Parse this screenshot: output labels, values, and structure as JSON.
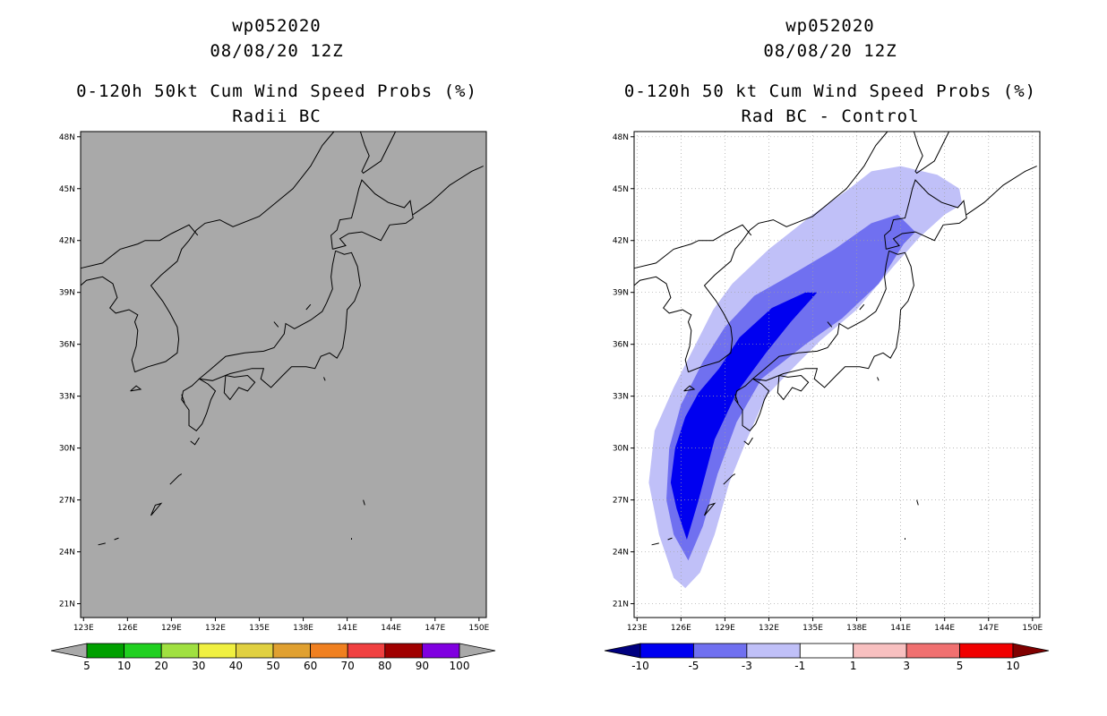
{
  "left_panel": {
    "storm_id": "wp052020",
    "datetime": "08/08/20 12Z",
    "title": "0-120h 50kt Cum Wind Speed Probs (%)",
    "subtitle": "Radii BC",
    "plot_background": "#a9a9a9",
    "colorbar": {
      "colors": [
        "#00a000",
        "#20d020",
        "#a0e040",
        "#f0f040",
        "#e0d040",
        "#e0a030",
        "#f08020",
        "#f04040",
        "#a00000",
        "#8000e0"
      ],
      "under_color": "#a9a9a9",
      "over_color": "#a9a9a9",
      "labels": [
        "5",
        "10",
        "20",
        "30",
        "40",
        "50",
        "60",
        "70",
        "80",
        "90",
        "100"
      ]
    }
  },
  "right_panel": {
    "storm_id": "wp052020",
    "datetime": "08/08/20 12Z",
    "title": "0-120h 50 kt Cum Wind Speed Probs (%)",
    "subtitle": "Rad BC - Control",
    "plot_background": "#ffffff",
    "colorbar": {
      "colors": [
        "#0000f0",
        "#7070f0",
        "#c0c0f8",
        "#ffffff",
        "#f8c0c0",
        "#f07070",
        "#f00000"
      ],
      "under_color": "#000080",
      "over_color": "#800000",
      "labels": [
        "-10",
        "-5",
        "-3",
        "-1",
        "1",
        "3",
        "5",
        "10"
      ]
    }
  },
  "axes": {
    "lon_labels": [
      "123E",
      "126E",
      "129E",
      "132E",
      "135E",
      "138E",
      "141E",
      "144E",
      "147E",
      "150E"
    ],
    "lat_labels": [
      "48N",
      "45N",
      "42N",
      "39N",
      "36N",
      "33N",
      "30N",
      "27N",
      "24N",
      "21N"
    ]
  },
  "chart_data": [
    {
      "type": "heatmap",
      "title": "0-120h 50kt Cum Wind Speed Probs (%)",
      "subtitle": "Radii BC",
      "units": "%",
      "lon_range": [
        122.8,
        150.5
      ],
      "lat_range": [
        20.2,
        48.3
      ],
      "field": "no probability exceeding 5% shown (entire domain below lowest contour)",
      "levels": [
        5,
        10,
        20,
        30,
        40,
        50,
        60,
        70,
        80,
        90,
        100
      ]
    },
    {
      "type": "heatmap",
      "title": "0-120h 50 kt Cum Wind Speed Probs (%)",
      "subtitle": "Rad BC - Control",
      "units": "%",
      "lon_range": [
        122.8,
        150.5
      ],
      "lat_range": [
        20.2,
        48.3
      ],
      "levels": [
        -10,
        -5,
        -3,
        -1,
        1,
        3,
        5,
        10
      ],
      "contours": [
        {
          "range": "-3 to -1",
          "outline_lonlat": [
            [
              124.5,
              25
            ],
            [
              125.5,
              22.5
            ],
            [
              126.3,
              21.9
            ],
            [
              127.3,
              22.8
            ],
            [
              128.3,
              25
            ],
            [
              129.3,
              28
            ],
            [
              130.5,
              30.5
            ],
            [
              131.8,
              33
            ],
            [
              133.5,
              34.5
            ],
            [
              135.5,
              36.2
            ],
            [
              138,
              38
            ],
            [
              140.5,
              40.5
            ],
            [
              142.3,
              42.2
            ],
            [
              144,
              43.5
            ],
            [
              145.2,
              44.1
            ],
            [
              145,
              45
            ],
            [
              143.5,
              45.8
            ],
            [
              141,
              46.3
            ],
            [
              139,
              46
            ],
            [
              137.5,
              45
            ],
            [
              135,
              43.5
            ],
            [
              132,
              41.5
            ],
            [
              129.5,
              39.5
            ],
            [
              128.2,
              38
            ],
            [
              127,
              36
            ],
            [
              125.5,
              33.5
            ],
            [
              124.2,
              31
            ],
            [
              123.8,
              28
            ]
          ]
        },
        {
          "range": "-5 to -3",
          "outline_lonlat": [
            [
              125,
              27
            ],
            [
              125.5,
              25
            ],
            [
              126.5,
              23.5
            ],
            [
              127.5,
              25.5
            ],
            [
              128.5,
              28.5
            ],
            [
              129.8,
              31.5
            ],
            [
              131.5,
              34
            ],
            [
              134.5,
              36
            ],
            [
              137,
              37.5
            ],
            [
              139.5,
              39.5
            ],
            [
              141.2,
              41.8
            ],
            [
              142,
              42.5
            ],
            [
              140.8,
              43.5
            ],
            [
              139,
              43
            ],
            [
              136.5,
              41.5
            ],
            [
              133.5,
              40
            ],
            [
              131,
              38.8
            ],
            [
              129,
              37
            ],
            [
              127.5,
              35
            ],
            [
              126,
              32.5
            ],
            [
              125.2,
              30
            ]
          ]
        },
        {
          "range": "-10 to -5",
          "outline_lonlat": [
            [
              125.3,
              28
            ],
            [
              125.7,
              26.5
            ],
            [
              126.4,
              24.7
            ],
            [
              127.2,
              27
            ],
            [
              128.3,
              30.5
            ],
            [
              129.8,
              33.2
            ],
            [
              131.8,
              35.5
            ],
            [
              133.5,
              37.3
            ],
            [
              135.3,
              39
            ],
            [
              134.5,
              39
            ],
            [
              132.2,
              38.1
            ],
            [
              130,
              36.4
            ],
            [
              128.6,
              34.6
            ],
            [
              127.2,
              33.2
            ],
            [
              126.3,
              31.8
            ],
            [
              125.6,
              30
            ]
          ]
        }
      ]
    }
  ]
}
